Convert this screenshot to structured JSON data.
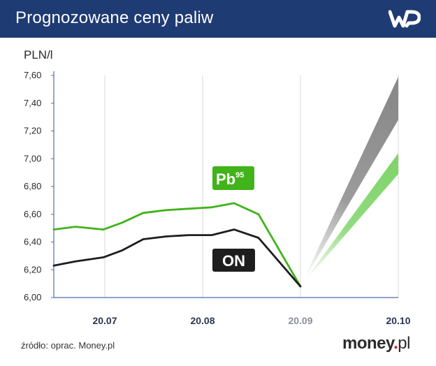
{
  "header": {
    "title": "Prognozowane ceny paliw"
  },
  "footer": {
    "source": "źródło: oprac. Money.pl",
    "brand_main": "money",
    "brand_dot": ".",
    "brand_suffix": "pl"
  },
  "colors": {
    "header_bg": "#1f3b73",
    "pb95": "#41b31b",
    "on": "#1e1e1e",
    "forecast_pb95": "#7fd46a",
    "forecast_on": "#8a8a8a",
    "axis": "#4a6db0"
  },
  "icons": {
    "publisher_logo": "wp-logo-icon"
  },
  "chart_data": {
    "type": "line",
    "title": "",
    "ylabel": "PLN/l",
    "xlabel": "",
    "ylim": [
      6.0,
      7.6
    ],
    "yticks": [
      "6,00",
      "6,20",
      "6,40",
      "6,60",
      "6,80",
      "7,00",
      "7,20",
      "7,40",
      "7,60"
    ],
    "ytick_values": [
      6.0,
      6.2,
      6.4,
      6.6,
      6.8,
      7.0,
      7.2,
      7.4,
      7.6
    ],
    "xtick_labels": [
      "20.07",
      "20.08",
      "20.09",
      "20.10"
    ],
    "grid": "vertical",
    "series": [
      {
        "name": "Pb95",
        "label_main": "Pb",
        "label_sup": "95",
        "values": [
          6.49,
          6.51,
          6.49,
          6.54,
          6.61,
          6.63,
          6.64,
          6.65,
          6.68,
          6.6,
          6.08
        ]
      },
      {
        "name": "ON",
        "label_main": "ON",
        "label_sup": "",
        "values": [
          6.23,
          6.26,
          6.29,
          6.34,
          6.42,
          6.44,
          6.45,
          6.45,
          6.49,
          6.43,
          6.08
        ]
      }
    ],
    "forecast": [
      {
        "series": "ON",
        "low": 7.28,
        "high": 7.59
      },
      {
        "series": "Pb95",
        "low": 6.89,
        "high": 7.04
      }
    ]
  }
}
